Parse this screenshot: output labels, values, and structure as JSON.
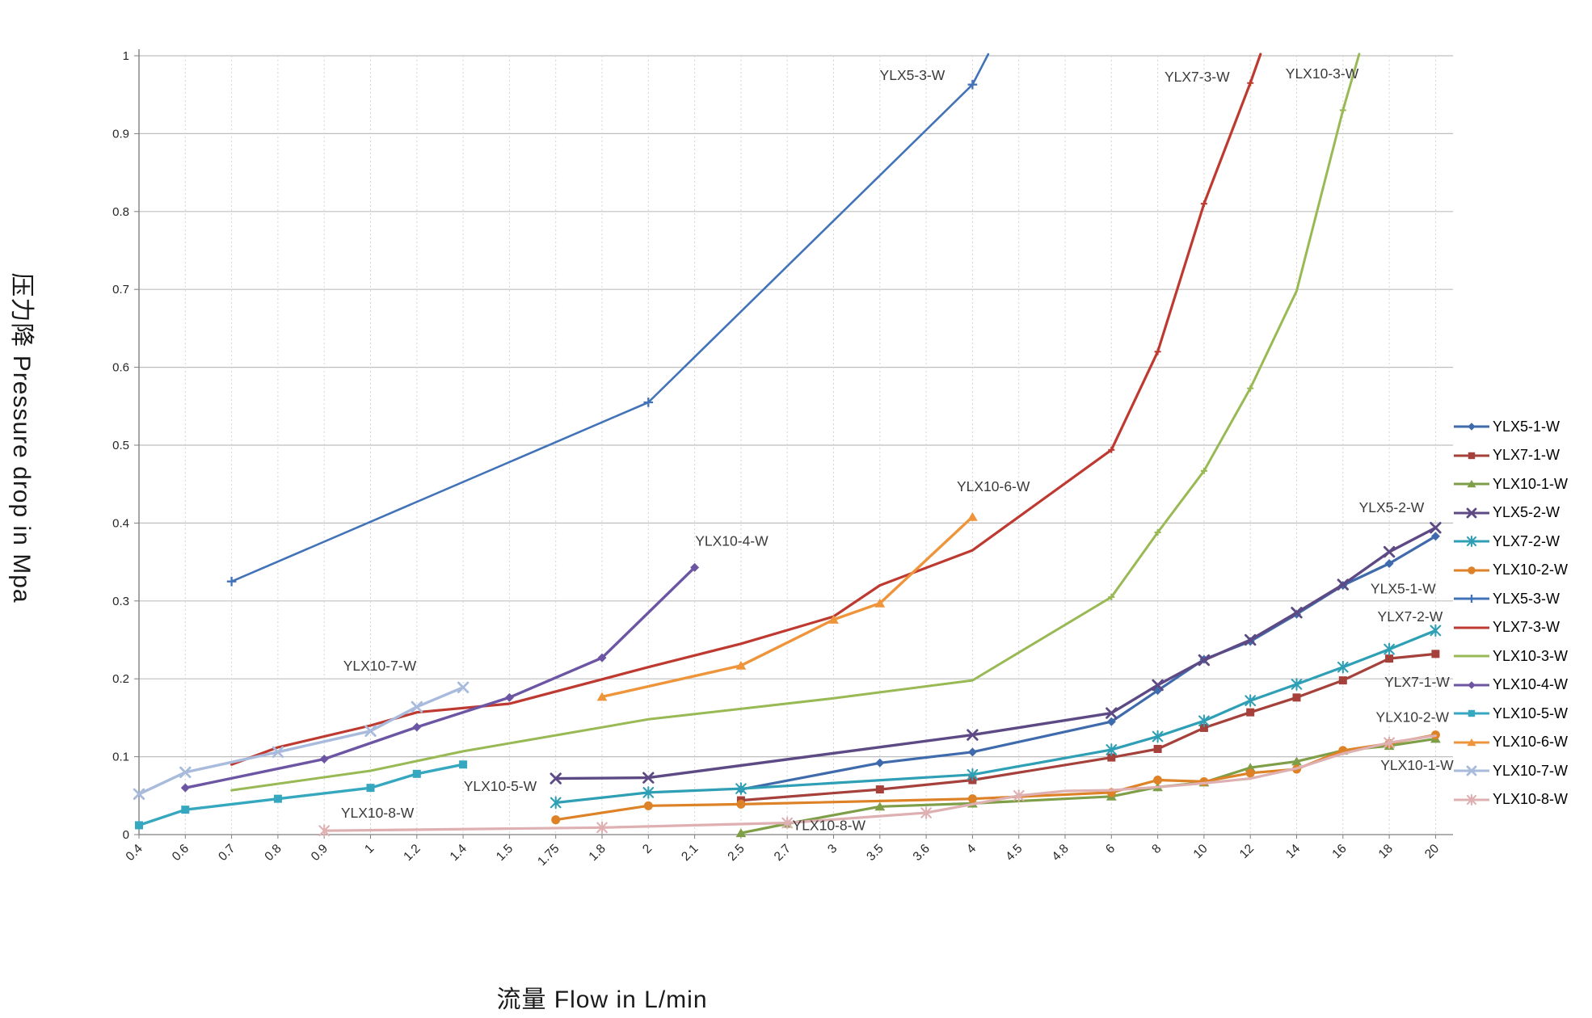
{
  "axes": {
    "y_title": "压力降 Pressure drop in Mpa",
    "x_title": "流量 Flow in L/min"
  },
  "chart_data": {
    "type": "line",
    "xlabel": "流量 Flow in L/min",
    "ylabel": "压力降 Pressure drop in Mpa",
    "ylim": [
      0,
      1
    ],
    "y_tick_labels": [
      "0",
      "0.1",
      "0.2",
      "0.3",
      "0.4",
      "0.5",
      "0.6",
      "0.7",
      "0.8",
      "0.9",
      "1"
    ],
    "categories": [
      "0.4",
      "0.6",
      "0.7",
      "0.8",
      "0.9",
      "1",
      "1.2",
      "1.4",
      "1.5",
      "1.75",
      "1.8",
      "2",
      "2.1",
      "2.5",
      "2.7",
      "3",
      "3.5",
      "3.6",
      "4",
      "4.5",
      "4.8",
      "6",
      "8",
      "10",
      "12",
      "14",
      "16",
      "18",
      "20"
    ],
    "grid": {
      "horizontal": "solid",
      "vertical": "dashed"
    },
    "legend_position": "right",
    "series": [
      {
        "name": "YLX5-1-W",
        "color": "#3F6BAD",
        "marker": "diamond",
        "width": 3.2,
        "points": [
          [
            "2.5",
            0.058
          ],
          [
            "3.5",
            0.092
          ],
          [
            "4",
            0.106
          ],
          [
            "6",
            0.145
          ],
          [
            "8",
            0.185
          ],
          [
            "10",
            0.225
          ],
          [
            "12",
            0.248
          ],
          [
            "14",
            0.283
          ],
          [
            "16",
            0.32
          ],
          [
            "18",
            0.348
          ],
          [
            "20",
            0.383
          ]
        ]
      },
      {
        "name": "YLX7-1-W",
        "color": "#A5403A",
        "marker": "square",
        "width": 3.2,
        "points": [
          [
            "2.5",
            0.044
          ],
          [
            "3.5",
            0.058
          ],
          [
            "4",
            0.07
          ],
          [
            "6",
            0.099
          ],
          [
            "8",
            0.11
          ],
          [
            "10",
            0.137
          ],
          [
            "12",
            0.157
          ],
          [
            "14",
            0.176
          ],
          [
            "16",
            0.198
          ],
          [
            "18",
            0.226
          ],
          [
            "20",
            0.232
          ]
        ]
      },
      {
        "name": "YLX10-1-W",
        "color": "#7F9E48",
        "marker": "triangle",
        "width": 3.2,
        "points": [
          [
            "2.5",
            0.002
          ],
          [
            "2.7",
            0.014
          ],
          [
            "3.5",
            0.036
          ],
          [
            "4",
            0.04
          ],
          [
            "6",
            0.049
          ],
          [
            "8",
            0.061
          ],
          [
            "10",
            0.067
          ],
          [
            "12",
            0.086
          ],
          [
            "14",
            0.094
          ],
          [
            "16",
            0.108
          ],
          [
            "18",
            0.114
          ],
          [
            "20",
            0.123
          ]
        ]
      },
      {
        "name": "YLX5-2-W",
        "color": "#5D4A85",
        "marker": "x",
        "width": 3.4,
        "points": [
          [
            "1.75",
            0.072
          ],
          [
            "2",
            0.073
          ],
          [
            "4",
            0.128
          ],
          [
            "6",
            0.156
          ],
          [
            "8",
            0.192
          ],
          [
            "10",
            0.224
          ],
          [
            "12",
            0.25
          ],
          [
            "14",
            0.285
          ],
          [
            "16",
            0.321
          ],
          [
            "18",
            0.363
          ],
          [
            "20",
            0.394
          ]
        ]
      },
      {
        "name": "YLX7-2-W",
        "color": "#2E9FB5",
        "marker": "asterisk",
        "width": 3.2,
        "points": [
          [
            "1.75",
            0.041
          ],
          [
            "2",
            0.054
          ],
          [
            "2.5",
            0.059
          ],
          [
            "4",
            0.077
          ],
          [
            "6",
            0.109
          ],
          [
            "8",
            0.126
          ],
          [
            "10",
            0.146
          ],
          [
            "12",
            0.172
          ],
          [
            "14",
            0.193
          ],
          [
            "16",
            0.215
          ],
          [
            "18",
            0.238
          ],
          [
            "20",
            0.262
          ]
        ]
      },
      {
        "name": "YLX10-2-W",
        "color": "#DD8227",
        "marker": "circle",
        "width": 3.2,
        "points": [
          [
            "1.75",
            0.019
          ],
          [
            "2",
            0.037
          ],
          [
            "2.5",
            0.039
          ],
          [
            "4",
            0.046
          ],
          [
            "6",
            0.054
          ],
          [
            "8",
            0.07
          ],
          [
            "10",
            0.068
          ],
          [
            "12",
            0.079
          ],
          [
            "14",
            0.084
          ],
          [
            "16",
            0.108
          ],
          [
            "18",
            0.117
          ],
          [
            "20",
            0.128
          ]
        ]
      },
      {
        "name": "YLX5-3-W",
        "color": "#4273B9",
        "marker": "plus",
        "width": 2.6,
        "top_exit": 18.34,
        "points": [
          [
            "0.7",
            0.325
          ],
          [
            "2",
            0.555
          ],
          [
            "4",
            0.963
          ]
        ]
      },
      {
        "name": "YLX7-3-W",
        "color": "#BE3A31",
        "marker": "plus-small",
        "width": 3.2,
        "top_exit": 24.22,
        "marker_at": [
          "6",
          "8",
          "10",
          "12"
        ],
        "points": [
          [
            "0.7",
            0.09
          ],
          [
            "0.8",
            0.112
          ],
          [
            "1",
            0.14
          ],
          [
            "1.2",
            0.157
          ],
          [
            "1.5",
            0.168
          ],
          [
            "2",
            0.215
          ],
          [
            "2.5",
            0.245
          ],
          [
            "3",
            0.28
          ],
          [
            "3.5",
            0.32
          ],
          [
            "4",
            0.365
          ],
          [
            "6",
            0.494
          ],
          [
            "8",
            0.62
          ],
          [
            "10",
            0.81
          ],
          [
            "12",
            0.965
          ]
        ]
      },
      {
        "name": "YLX10-3-W",
        "color": "#98B954",
        "marker": "plus-small",
        "width": 3.0,
        "top_exit": 26.35,
        "marker_at": [
          "6",
          "8",
          "10",
          "12",
          "16"
        ],
        "points": [
          [
            "0.7",
            0.057
          ],
          [
            "1",
            0.082
          ],
          [
            "1.4",
            0.107
          ],
          [
            "2",
            0.148
          ],
          [
            "3",
            0.175
          ],
          [
            "4",
            0.198
          ],
          [
            "6",
            0.305
          ],
          [
            "8",
            0.388
          ],
          [
            "10",
            0.467
          ],
          [
            "12",
            0.573
          ],
          [
            "14",
            0.698
          ],
          [
            "16",
            0.93
          ]
        ]
      },
      {
        "name": "YLX10-4-W",
        "color": "#6C55A3",
        "marker": "diamond",
        "width": 3.4,
        "points": [
          [
            "0.6",
            0.06
          ],
          [
            "0.9",
            0.097
          ],
          [
            "1.2",
            0.138
          ],
          [
            "1.5",
            0.176
          ],
          [
            "1.8",
            0.227
          ],
          [
            "2.1",
            0.343
          ]
        ]
      },
      {
        "name": "YLX10-5-W",
        "color": "#35A8C0",
        "marker": "square",
        "width": 3.4,
        "points": [
          [
            "0.4",
            0.012
          ],
          [
            "0.6",
            0.032
          ],
          [
            "0.8",
            0.046
          ],
          [
            "1",
            0.06
          ],
          [
            "1.2",
            0.078
          ],
          [
            "1.4",
            0.09
          ]
        ]
      },
      {
        "name": "YLX10-6-W",
        "color": "#EE953B",
        "marker": "triangle",
        "width": 3.4,
        "points": [
          [
            "1.8",
            0.177
          ],
          [
            "2.5",
            0.217
          ],
          [
            "3",
            0.276
          ],
          [
            "3.5",
            0.297
          ],
          [
            "4",
            0.408
          ]
        ]
      },
      {
        "name": "YLX10-7-W",
        "color": "#A9BBDC",
        "marker": "x",
        "width": 3.4,
        "points": [
          [
            "0.4",
            0.052
          ],
          [
            "0.6",
            0.08
          ],
          [
            "0.8",
            0.106
          ],
          [
            "1",
            0.133
          ],
          [
            "1.2",
            0.164
          ],
          [
            "1.4",
            0.189
          ]
        ]
      },
      {
        "name": "YLX10-8-W",
        "color": "#DFB0B2",
        "marker": "asterisk",
        "width": 3.2,
        "marker_at": [
          "0.9",
          "1.8",
          "2.7",
          "3.6",
          "4.5",
          "18"
        ],
        "points": [
          [
            "0.9",
            0.005
          ],
          [
            "1.8",
            0.009
          ],
          [
            "2.7",
            0.015
          ],
          [
            "3.6",
            0.028
          ],
          [
            "4.5",
            0.05
          ],
          [
            "4.8",
            0.056
          ],
          [
            "6",
            0.057
          ],
          [
            "8",
            0.061
          ],
          [
            "10",
            0.066
          ],
          [
            "12",
            0.072
          ],
          [
            "14",
            0.085
          ],
          [
            "16",
            0.104
          ],
          [
            "18",
            0.118
          ],
          [
            "20",
            0.127
          ]
        ]
      }
    ],
    "annotations": [
      {
        "text": "YLX5-3-W",
        "ci": 16.7,
        "v": 0.975
      },
      {
        "text": "YLX7-3-W",
        "ci": 22.85,
        "v": 0.973
      },
      {
        "text": "YLX10-3-W",
        "ci": 25.55,
        "v": 0.977
      },
      {
        "text": "YLX10-6-W",
        "ci": 18.45,
        "v": 0.447
      },
      {
        "text": "YLX10-4-W",
        "ci": 12.8,
        "v": 0.377
      },
      {
        "text": "YLX10-7-W",
        "ci": 5.2,
        "v": 0.217
      },
      {
        "text": "YLX10-5-W",
        "ci": 7.8,
        "v": 0.062
      },
      {
        "text": "YLX10-8-W",
        "ci": 5.15,
        "v": 0.028
      },
      {
        "text": "YLX10-8-W",
        "ci": 14.9,
        "v": 0.012
      },
      {
        "text": "YLX5-2-W",
        "ci": 27.05,
        "v": 0.42
      },
      {
        "text": "YLX5-1-W",
        "ci": 27.3,
        "v": 0.316
      },
      {
        "text": "YLX7-2-W",
        "ci": 27.45,
        "v": 0.28
      },
      {
        "text": "YLX7-1-W",
        "ci": 27.6,
        "v": 0.196
      },
      {
        "text": "YLX10-2-W",
        "ci": 27.5,
        "v": 0.151
      },
      {
        "text": "YLX10-1-W",
        "ci": 27.6,
        "v": 0.089
      }
    ]
  },
  "legend": {
    "items": [
      "YLX5-1-W",
      "YLX7-1-W",
      "YLX10-1-W",
      "YLX5-2-W",
      "YLX7-2-W",
      "YLX10-2-W",
      "YLX5-3-W",
      "YLX7-3-W",
      "YLX10-3-W",
      "YLX10-4-W",
      "YLX10-5-W",
      "YLX10-6-W",
      "YLX10-7-W",
      "YLX10-8-W"
    ]
  }
}
